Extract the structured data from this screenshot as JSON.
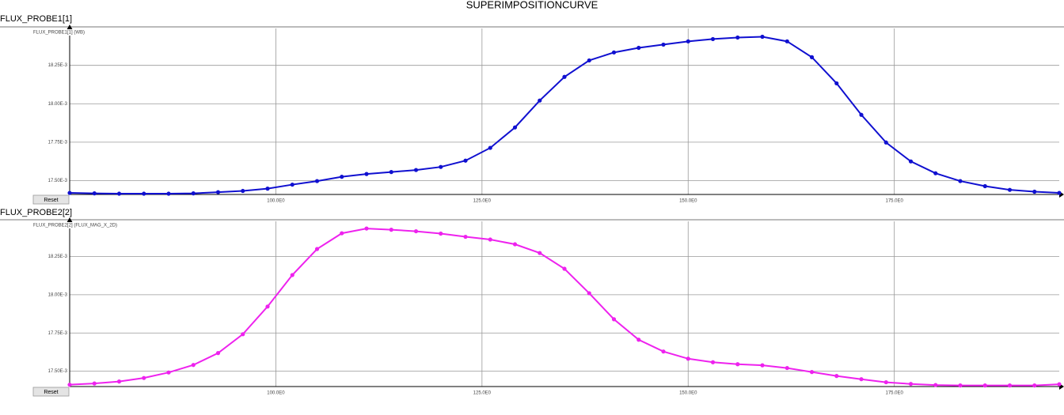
{
  "title": "SUPERIMPOSITIONCURVE",
  "chart_data": [
    {
      "type": "line",
      "title": "FLUX_PROBE1[1]",
      "ylabel": "FLUX_PROBE1[1] (WB)",
      "reset_button": "Reset",
      "x": [
        75,
        78,
        81,
        84,
        87,
        90,
        93,
        96,
        99,
        102,
        105,
        108,
        111,
        114,
        117,
        120,
        123,
        126,
        129,
        132,
        135,
        138,
        141,
        144,
        147,
        150,
        153,
        156,
        159,
        162,
        165,
        168,
        171,
        174,
        177,
        180,
        183,
        186,
        189,
        192,
        195
      ],
      "series": [
        {
          "color": "#1010d0",
          "values": [
            0.01742,
            0.017417,
            0.017415,
            0.017415,
            0.017415,
            0.017417,
            0.017425,
            0.017433,
            0.017448,
            0.017474,
            0.017497,
            0.017525,
            0.017543,
            0.017556,
            0.017569,
            0.017589,
            0.01763,
            0.017713,
            0.017846,
            0.018021,
            0.018175,
            0.018282,
            0.018334,
            0.018364,
            0.018385,
            0.018406,
            0.018421,
            0.018431,
            0.018436,
            0.018406,
            0.018303,
            0.018133,
            0.017928,
            0.017748,
            0.017625,
            0.017548,
            0.017497,
            0.017464,
            0.01744,
            0.017428,
            0.01742
          ]
        }
      ],
      "xlim": [
        75,
        195
      ],
      "ylim": [
        0.01741,
        0.01849
      ],
      "xticks": [
        {
          "value": 100,
          "label": "100.0E0"
        },
        {
          "value": 125,
          "label": "125.0E0"
        },
        {
          "value": 150,
          "label": "150.0E0"
        },
        {
          "value": 175,
          "label": "175.0E0"
        }
      ],
      "yticks": [
        {
          "value": 0.0175,
          "label": "17.50E-3"
        },
        {
          "value": 0.01775,
          "label": "17.75E-3"
        },
        {
          "value": 0.018,
          "label": "18.00E-3"
        },
        {
          "value": 0.01825,
          "label": "18.25E-3"
        }
      ],
      "grid": true
    },
    {
      "type": "line",
      "title": "FLUX_PROBE2[2]",
      "ylabel": "FLUX_PROBE2[2] (FLUX_MAG_X_2D)",
      "reset_button": "Reset",
      "x": [
        75,
        78,
        81,
        84,
        87,
        90,
        93,
        96,
        99,
        102,
        105,
        108,
        111,
        114,
        117,
        120,
        123,
        126,
        129,
        132,
        135,
        138,
        141,
        144,
        147,
        150,
        153,
        156,
        159,
        162,
        165,
        168,
        171,
        174,
        177,
        180,
        183,
        186,
        189,
        192,
        195
      ],
      "series": [
        {
          "color": "#ee22ee",
          "values": [
            0.017412,
            0.01742,
            0.017433,
            0.017456,
            0.017492,
            0.017541,
            0.017619,
            0.017742,
            0.017923,
            0.018129,
            0.018299,
            0.018402,
            0.018433,
            0.018425,
            0.018415,
            0.0184,
            0.018379,
            0.018361,
            0.01833,
            0.018273,
            0.01817,
            0.01801,
            0.01784,
            0.017706,
            0.017629,
            0.017582,
            0.017559,
            0.017546,
            0.017539,
            0.017521,
            0.017495,
            0.017469,
            0.017448,
            0.017428,
            0.017417,
            0.01741,
            0.017407,
            0.017407,
            0.017407,
            0.017407,
            0.017415
          ]
        }
      ],
      "xlim": [
        75,
        195
      ],
      "ylim": [
        0.0174,
        0.01848
      ],
      "xticks": [
        {
          "value": 100,
          "label": "100.0E0"
        },
        {
          "value": 125,
          "label": "125.0E0"
        },
        {
          "value": 150,
          "label": "150.0E0"
        },
        {
          "value": 175,
          "label": "175.0E0"
        }
      ],
      "yticks": [
        {
          "value": 0.0175,
          "label": "17.50E-3"
        },
        {
          "value": 0.01775,
          "label": "17.75E-3"
        },
        {
          "value": 0.018,
          "label": "18.00E-3"
        },
        {
          "value": 0.01825,
          "label": "18.25E-3"
        }
      ],
      "grid": true
    }
  ]
}
